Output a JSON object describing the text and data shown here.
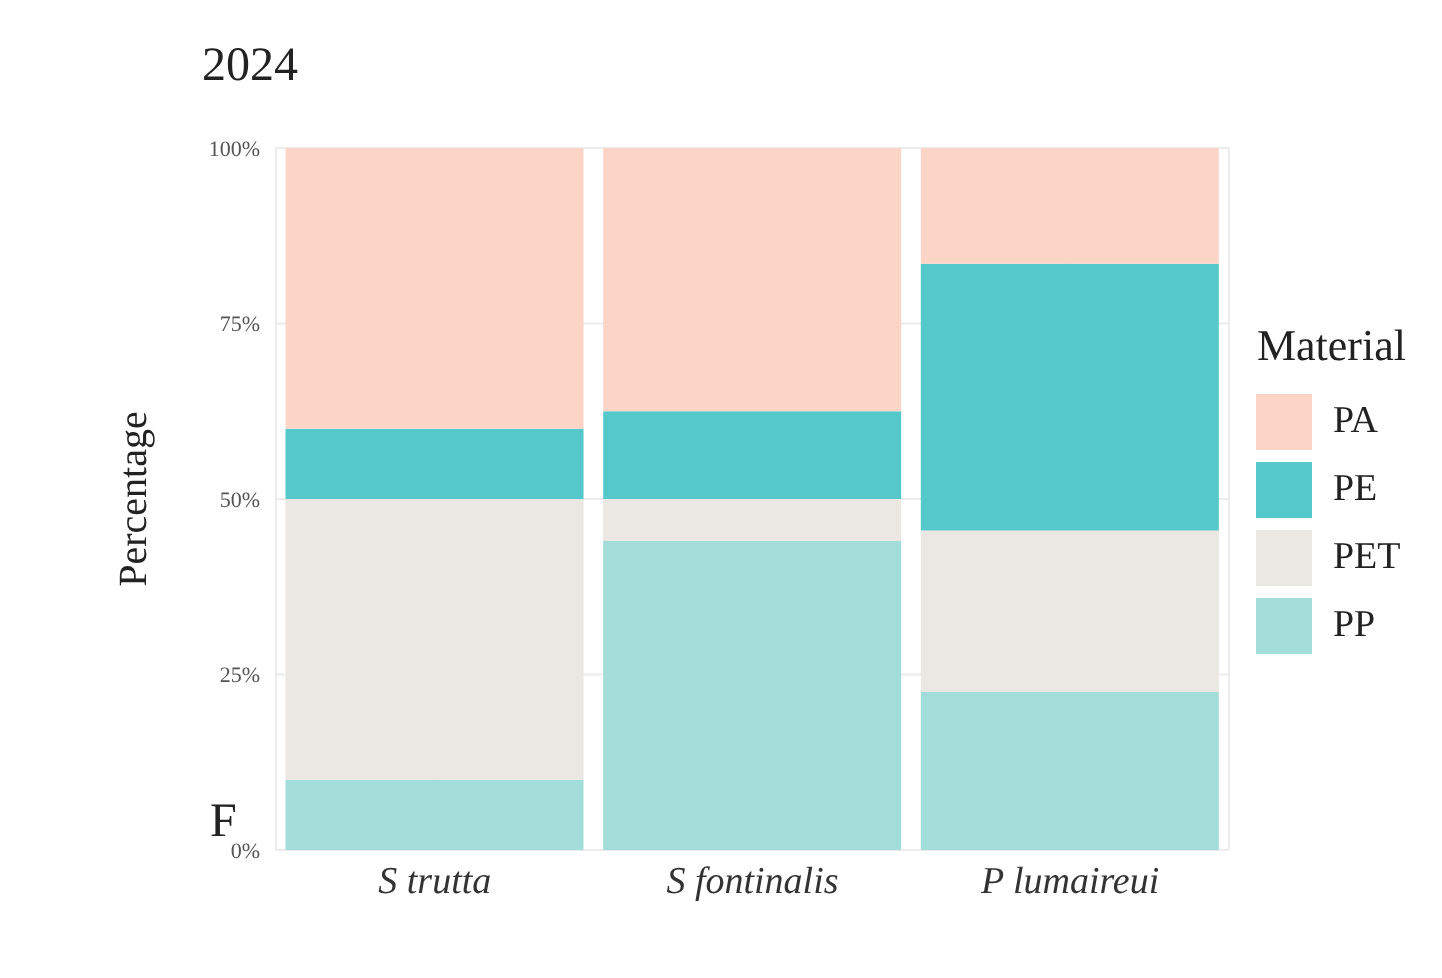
{
  "chart_data": {
    "type": "bar",
    "title": "2024",
    "ylabel": "Percentage",
    "legend_title": "Material",
    "stacked": true,
    "grid": true,
    "legend": "right",
    "categories": [
      "S trutta",
      "S fontinalis",
      "P lumaireui"
    ],
    "ylim": [
      0,
      100
    ],
    "yticks": [
      {
        "value": 0,
        "label": "0%"
      },
      {
        "value": 25,
        "label": "25%"
      },
      {
        "value": 50,
        "label": "50%"
      },
      {
        "value": 75,
        "label": "75%"
      },
      {
        "value": 100,
        "label": "100%"
      }
    ],
    "series": [
      {
        "name": "PP",
        "color": "#a2ddd9",
        "values": [
          10,
          44,
          22.5
        ]
      },
      {
        "name": "PET",
        "color": "#ebe7e2",
        "values": [
          40,
          6,
          23
        ]
      },
      {
        "name": "PE",
        "color": "#55c8cb",
        "values": [
          10,
          12.5,
          38
        ]
      },
      {
        "name": "PA",
        "color": "#fdd5c7",
        "values": [
          40,
          37.5,
          16.5
        ]
      }
    ],
    "annotations": [
      "F"
    ]
  }
}
